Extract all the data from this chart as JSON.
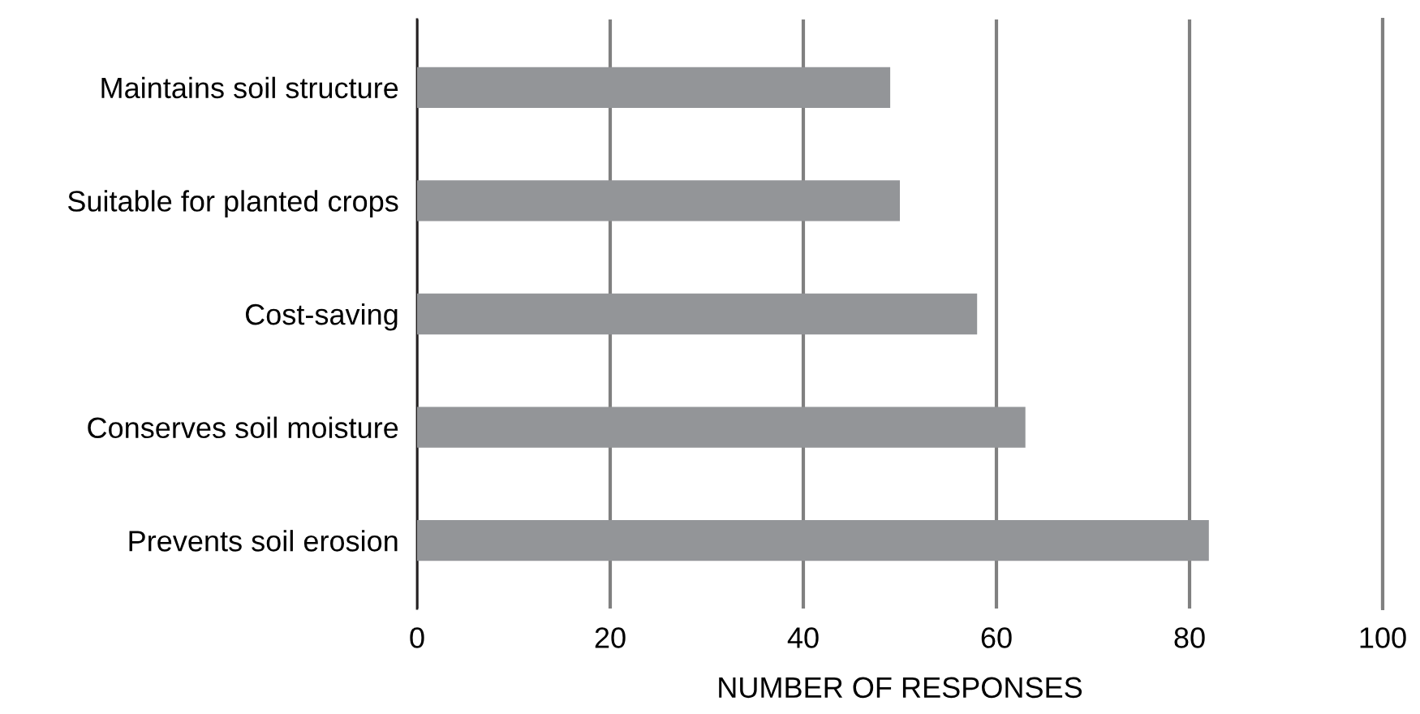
{
  "chart_data": {
    "type": "bar",
    "orientation": "horizontal",
    "xlabel": "NUMBER OF RESPONSES",
    "categories": [
      "Maintains soil structure",
      "Suitable for planted crops",
      "Cost-saving",
      "Conserves soil moisture",
      "Prevents soil erosion"
    ],
    "values": [
      49,
      50,
      58,
      63,
      82
    ],
    "color": "#939598",
    "xlim": [
      0,
      100
    ],
    "xticks": [
      0,
      20,
      40,
      60,
      80,
      100
    ],
    "grid": "x",
    "legend": false
  }
}
